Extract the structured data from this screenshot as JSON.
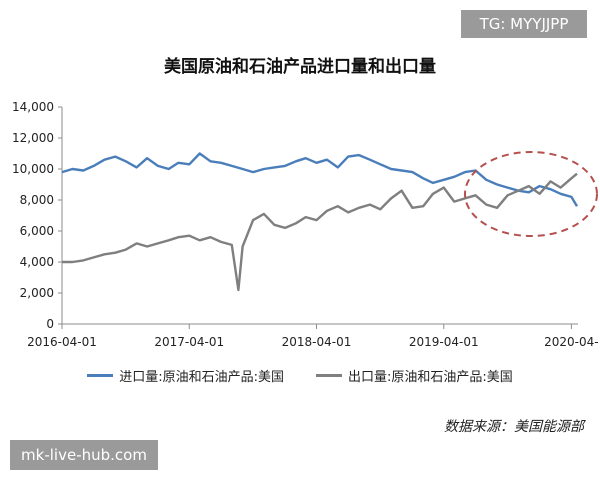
{
  "watermark_top": "TG: MYYJJPP",
  "watermark_bottom": "mk-live-hub.com",
  "source": "数据来源：美国能源部",
  "colors": {
    "import": "#4a7ebb",
    "export": "#7f7f7f",
    "circle": "#b5504d",
    "watermark": "#9a9a9a"
  },
  "chart_data": {
    "type": "line",
    "title": "美国原油和石油产品进口量和出口量",
    "xlabel": "",
    "ylabel": "",
    "ylim": [
      0,
      14000
    ],
    "yticks": [
      0,
      2000,
      4000,
      6000,
      8000,
      10000,
      12000,
      14000
    ],
    "ytick_labels": [
      "0",
      "2,000",
      "4,000",
      "6,000",
      "8,000",
      "10,000",
      "12,000",
      "14,000"
    ],
    "xlim": [
      "2016-04-01",
      "2020-04-20"
    ],
    "xticks": [
      "2016-04-01",
      "2017-04-01",
      "2018-04-01",
      "2019-04-01",
      "2020-04-01"
    ],
    "xtick_labels": [
      "2016-04-01",
      "2017-04-01",
      "2018-04-01",
      "2019-04-01",
      "2020-04-"
    ],
    "grid": false,
    "legend": "bottom",
    "annotation": "dashed ellipse highlighting recent months",
    "series": [
      {
        "name": "进口量:原油和石油产品:美国",
        "x": [
          "2016-04-01",
          "2016-05-01",
          "2016-06-01",
          "2016-07-01",
          "2016-08-01",
          "2016-09-01",
          "2016-10-01",
          "2016-11-01",
          "2016-12-01",
          "2017-01-01",
          "2017-02-01",
          "2017-03-01",
          "2017-04-01",
          "2017-05-01",
          "2017-06-01",
          "2017-07-01",
          "2017-08-01",
          "2017-09-01",
          "2017-10-01",
          "2017-11-01",
          "2017-12-01",
          "2018-01-01",
          "2018-02-01",
          "2018-03-01",
          "2018-04-01",
          "2018-05-01",
          "2018-06-01",
          "2018-07-01",
          "2018-08-01",
          "2018-09-01",
          "2018-10-01",
          "2018-11-01",
          "2018-12-01",
          "2019-01-01",
          "2019-02-01",
          "2019-03-01",
          "2019-04-01",
          "2019-05-01",
          "2019-06-01",
          "2019-07-01",
          "2019-08-01",
          "2019-09-01",
          "2019-10-01",
          "2019-11-01",
          "2019-12-01",
          "2020-01-01",
          "2020-02-01",
          "2020-03-01",
          "2020-04-01",
          "2020-04-17"
        ],
        "values": [
          9800,
          10000,
          9900,
          10200,
          10600,
          10800,
          10500,
          10100,
          10700,
          10200,
          10000,
          10400,
          10300,
          11000,
          10500,
          10400,
          10200,
          10000,
          9800,
          10000,
          10100,
          10200,
          10500,
          10700,
          10400,
          10600,
          10100,
          10800,
          10900,
          10600,
          10300,
          10000,
          9900,
          9800,
          9400,
          9100,
          9300,
          9500,
          9800,
          9900,
          9300,
          9000,
          8800,
          8600,
          8500,
          8900,
          8700,
          8400,
          8200,
          7600
        ]
      },
      {
        "name": "出口量:原油和石油产品:美国",
        "x": [
          "2016-04-01",
          "2016-05-01",
          "2016-06-01",
          "2016-07-01",
          "2016-08-01",
          "2016-09-01",
          "2016-10-01",
          "2016-11-01",
          "2016-12-01",
          "2017-01-01",
          "2017-02-01",
          "2017-03-01",
          "2017-04-01",
          "2017-05-01",
          "2017-06-01",
          "2017-07-01",
          "2017-08-01",
          "2017-08-20",
          "2017-09-01",
          "2017-10-01",
          "2017-11-01",
          "2017-12-01",
          "2018-01-01",
          "2018-02-01",
          "2018-03-01",
          "2018-04-01",
          "2018-05-01",
          "2018-06-01",
          "2018-07-01",
          "2018-08-01",
          "2018-09-01",
          "2018-10-01",
          "2018-11-01",
          "2018-12-01",
          "2019-01-01",
          "2019-02-01",
          "2019-03-01",
          "2019-04-01",
          "2019-05-01",
          "2019-06-01",
          "2019-07-01",
          "2019-08-01",
          "2019-09-01",
          "2019-10-01",
          "2019-11-01",
          "2019-12-01",
          "2020-01-01",
          "2020-02-01",
          "2020-03-01",
          "2020-04-01",
          "2020-04-17"
        ],
        "values": [
          4000,
          4000,
          4100,
          4300,
          4500,
          4600,
          4800,
          5200,
          5000,
          5200,
          5400,
          5600,
          5700,
          5400,
          5600,
          5300,
          5100,
          2200,
          5000,
          6700,
          7100,
          6400,
          6200,
          6500,
          6900,
          6700,
          7300,
          7600,
          7200,
          7500,
          7700,
          7400,
          8100,
          8600,
          7500,
          7600,
          8400,
          8800,
          7900,
          8100,
          8300,
          7700,
          7500,
          8300,
          8600,
          8900,
          8400,
          9200,
          8800,
          9400,
          9700
        ]
      }
    ]
  }
}
